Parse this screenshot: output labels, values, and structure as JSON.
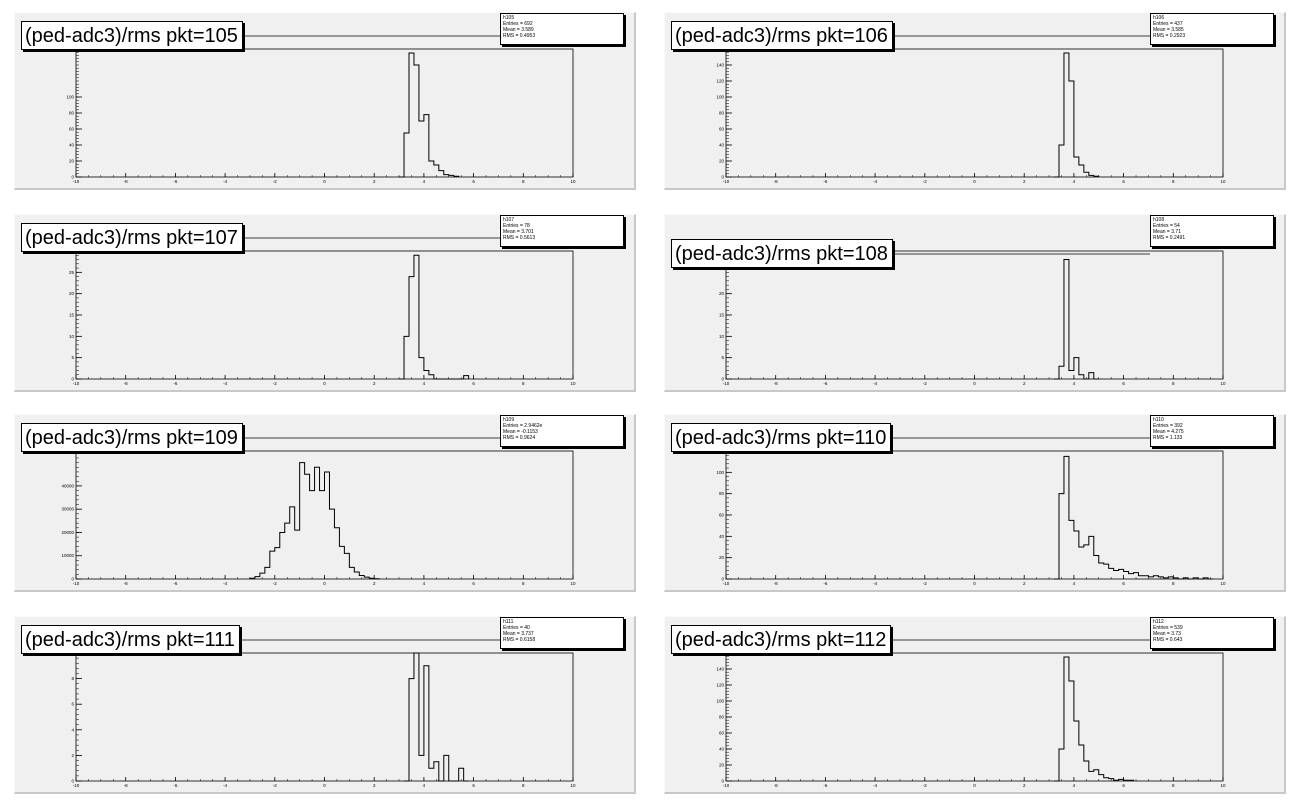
{
  "chart_data": [
    {
      "type": "bar",
      "title": "(ped-adc3)/rms pkt=105",
      "xlim": [
        -10,
        10
      ],
      "y_ticks": [
        "0",
        "20",
        "40",
        "60",
        "80",
        "100"
      ],
      "x_ticks": [
        "-10",
        "-8",
        "-6",
        "-4",
        "-2",
        "0",
        "2",
        "4",
        "6",
        "8",
        "10"
      ],
      "ylim": [
        0,
        160
      ],
      "bins": [
        [
          3.0,
          0
        ],
        [
          3.2,
          55
        ],
        [
          3.4,
          155
        ],
        [
          3.6,
          140
        ],
        [
          3.8,
          70
        ],
        [
          4.0,
          78
        ],
        [
          4.2,
          20
        ],
        [
          4.4,
          15
        ],
        [
          4.6,
          8
        ],
        [
          4.8,
          3
        ],
        [
          5.0,
          2
        ],
        [
          5.2,
          1
        ]
      ],
      "stats": {
        "name": "h105",
        "entries": "Entries = 692",
        "mean": "Mean = 3.589",
        "rms": "RMS = 0.4953"
      }
    },
    {
      "type": "bar",
      "title": "(ped-adc3)/rms pkt=106",
      "xlim": [
        -10,
        10
      ],
      "y_ticks": [
        "0",
        "20",
        "40",
        "60",
        "80",
        "100",
        "120",
        "140"
      ],
      "x_ticks": [
        "-10",
        "-8",
        "-6",
        "-4",
        "-2",
        "0",
        "2",
        "4",
        "6",
        "8",
        "10"
      ],
      "ylim": [
        0,
        160
      ],
      "bins": [
        [
          3.2,
          0
        ],
        [
          3.4,
          40
        ],
        [
          3.6,
          155
        ],
        [
          3.8,
          120
        ],
        [
          4.0,
          25
        ],
        [
          4.2,
          15
        ],
        [
          4.4,
          6
        ],
        [
          4.6,
          2
        ],
        [
          4.8,
          1
        ]
      ],
      "stats": {
        "name": "h106",
        "entries": "Entries = 437",
        "mean": "Mean = 3.585",
        "rms": "RMS = 0.2923"
      }
    },
    {
      "type": "bar",
      "title": "(ped-adc3)/rms pkt=107",
      "xlim": [
        -10,
        10
      ],
      "y_ticks": [
        "0",
        "5",
        "10",
        "15",
        "20",
        "25"
      ],
      "x_ticks": [
        "-10",
        "-8",
        "-6",
        "-4",
        "-2",
        "0",
        "2",
        "4",
        "6",
        "8",
        "10"
      ],
      "ylim": [
        0,
        30
      ],
      "bins": [
        [
          3.0,
          0
        ],
        [
          3.2,
          10
        ],
        [
          3.4,
          24
        ],
        [
          3.6,
          29
        ],
        [
          3.8,
          5
        ],
        [
          4.0,
          2
        ],
        [
          4.2,
          1
        ],
        [
          4.4,
          0
        ],
        [
          4.6,
          0
        ],
        [
          4.8,
          0
        ],
        [
          5.0,
          0
        ],
        [
          5.2,
          0
        ],
        [
          5.4,
          0
        ],
        [
          5.6,
          0.8
        ]
      ],
      "stats": {
        "name": "h107",
        "entries": "Entries = 78",
        "mean": "Mean = 3.701",
        "rms": "RMS = 0.5613"
      }
    },
    {
      "type": "bar",
      "title": "(ped-adc3)/rms pkt=108",
      "xlim": [
        -10,
        10
      ],
      "y_ticks": [
        "0",
        "5",
        "10",
        "15",
        "20"
      ],
      "x_ticks": [
        "-10",
        "-8",
        "-6",
        "-4",
        "-2",
        "0",
        "2",
        "4",
        "6",
        "8",
        "10"
      ],
      "ylim": [
        0,
        30
      ],
      "bins": [
        [
          3.2,
          0
        ],
        [
          3.4,
          3
        ],
        [
          3.6,
          28
        ],
        [
          3.8,
          2
        ],
        [
          4.0,
          5
        ],
        [
          4.2,
          1
        ],
        [
          4.4,
          0
        ],
        [
          4.6,
          1.5
        ],
        [
          4.8,
          0
        ]
      ],
      "stats": {
        "name": "h108",
        "entries": "Entries = 54",
        "mean": "Mean = 3.71",
        "rms": "RMS = 0.2491"
      }
    },
    {
      "type": "bar",
      "title": "(ped-adc3)/rms pkt=109",
      "xlim": [
        -10,
        10
      ],
      "y_ticks": [
        "0",
        "10000",
        "20000",
        "30000",
        "40000"
      ],
      "x_ticks": [
        "-10",
        "-8",
        "-6",
        "-4",
        "-2",
        "0",
        "2",
        "4",
        "6",
        "8",
        "10"
      ],
      "ylim": [
        0,
        55000
      ],
      "bins": [
        [
          -3.0,
          300
        ],
        [
          -2.8,
          1000
        ],
        [
          -2.6,
          2500
        ],
        [
          -2.4,
          5000
        ],
        [
          -2.2,
          12000
        ],
        [
          -2.0,
          13500
        ],
        [
          -1.8,
          20000
        ],
        [
          -1.6,
          24000
        ],
        [
          -1.4,
          31000
        ],
        [
          -1.2,
          21000
        ],
        [
          -1.0,
          50000
        ],
        [
          -0.8,
          45000
        ],
        [
          -0.6,
          38000
        ],
        [
          -0.4,
          48000
        ],
        [
          -0.2,
          38000
        ],
        [
          0.0,
          46000
        ],
        [
          0.2,
          30000
        ],
        [
          0.4,
          22000
        ],
        [
          0.6,
          14000
        ],
        [
          0.8,
          11000
        ],
        [
          1.0,
          5000
        ],
        [
          1.2,
          3000
        ],
        [
          1.4,
          1500
        ],
        [
          1.6,
          800
        ],
        [
          1.8,
          300
        ],
        [
          2.0,
          100
        ]
      ],
      "stats": {
        "name": "h109",
        "entries": "Entries = 2.9462e",
        "mean": "Mean = -0.1153",
        "rms": "RMS = 0.9624"
      }
    },
    {
      "type": "bar",
      "title": "(ped-adc3)/rms pkt=110",
      "xlim": [
        -10,
        10
      ],
      "y_ticks": [
        "0",
        "20",
        "40",
        "60",
        "80",
        "100"
      ],
      "x_ticks": [
        "-10",
        "-8",
        "-6",
        "-4",
        "-2",
        "0",
        "2",
        "4",
        "6",
        "8",
        "10"
      ],
      "ylim": [
        0,
        120
      ],
      "bins": [
        [
          3.2,
          0
        ],
        [
          3.4,
          80
        ],
        [
          3.6,
          115
        ],
        [
          3.8,
          55
        ],
        [
          4.0,
          45
        ],
        [
          4.2,
          30
        ],
        [
          4.4,
          32
        ],
        [
          4.6,
          40
        ],
        [
          4.8,
          22
        ],
        [
          5.0,
          15
        ],
        [
          5.2,
          14
        ],
        [
          5.4,
          10
        ],
        [
          5.6,
          8
        ],
        [
          5.8,
          9
        ],
        [
          6.0,
          7
        ],
        [
          6.2,
          5
        ],
        [
          6.4,
          6
        ],
        [
          6.6,
          3
        ],
        [
          6.8,
          3
        ],
        [
          7.0,
          2
        ],
        [
          7.2,
          3
        ],
        [
          7.4,
          2
        ],
        [
          7.6,
          1
        ],
        [
          7.8,
          2
        ],
        [
          8.0,
          1
        ],
        [
          8.2,
          0
        ],
        [
          8.4,
          1
        ],
        [
          8.6,
          0
        ],
        [
          8.8,
          1
        ],
        [
          9.0,
          0
        ],
        [
          9.2,
          1
        ],
        [
          9.4,
          0
        ]
      ],
      "stats": {
        "name": "h110",
        "entries": "Entries = 392",
        "mean": "Mean = 4.275",
        "rms": "RMS = 1.133"
      }
    },
    {
      "type": "bar",
      "title": "(ped-adc3)/rms pkt=111",
      "xlim": [
        -10,
        10
      ],
      "y_ticks": [
        "0",
        "2",
        "4",
        "6",
        "8"
      ],
      "x_ticks": [
        "-10",
        "-8",
        "-6",
        "-4",
        "-2",
        "0",
        "2",
        "4",
        "6",
        "8",
        "10"
      ],
      "ylim": [
        0,
        10
      ],
      "bins": [
        [
          3.2,
          0
        ],
        [
          3.4,
          8
        ],
        [
          3.6,
          10
        ],
        [
          3.8,
          2
        ],
        [
          4.0,
          9
        ],
        [
          4.2,
          1
        ],
        [
          4.4,
          1.5
        ],
        [
          4.6,
          0
        ],
        [
          4.8,
          2
        ],
        [
          5.0,
          0
        ],
        [
          5.2,
          0
        ],
        [
          5.4,
          1
        ],
        [
          5.6,
          0
        ]
      ],
      "stats": {
        "name": "h111",
        "entries": "Entries = 40",
        "mean": "Mean = 3.737",
        "rms": "RMS = 0.6158"
      }
    },
    {
      "type": "bar",
      "title": "(ped-adc3)/rms pkt=112",
      "xlim": [
        -10,
        10
      ],
      "y_ticks": [
        "0",
        "20",
        "40",
        "60",
        "80",
        "100",
        "120",
        "140"
      ],
      "x_ticks": [
        "-10",
        "-8",
        "-6",
        "-4",
        "-2",
        "0",
        "2",
        "4",
        "6",
        "8",
        "10"
      ],
      "ylim": [
        0,
        160
      ],
      "bins": [
        [
          3.2,
          0
        ],
        [
          3.4,
          40
        ],
        [
          3.6,
          155
        ],
        [
          3.8,
          125
        ],
        [
          4.0,
          75
        ],
        [
          4.2,
          45
        ],
        [
          4.4,
          25
        ],
        [
          4.6,
          12
        ],
        [
          4.8,
          14
        ],
        [
          5.0,
          8
        ],
        [
          5.2,
          4
        ],
        [
          5.4,
          3
        ],
        [
          5.6,
          1
        ],
        [
          5.8,
          2
        ],
        [
          6.0,
          1
        ],
        [
          6.2,
          1
        ]
      ],
      "stats": {
        "name": "h112",
        "entries": "Entries = 539",
        "mean": "Mean = 3.73",
        "rms": "RMS = 0.643"
      }
    }
  ]
}
